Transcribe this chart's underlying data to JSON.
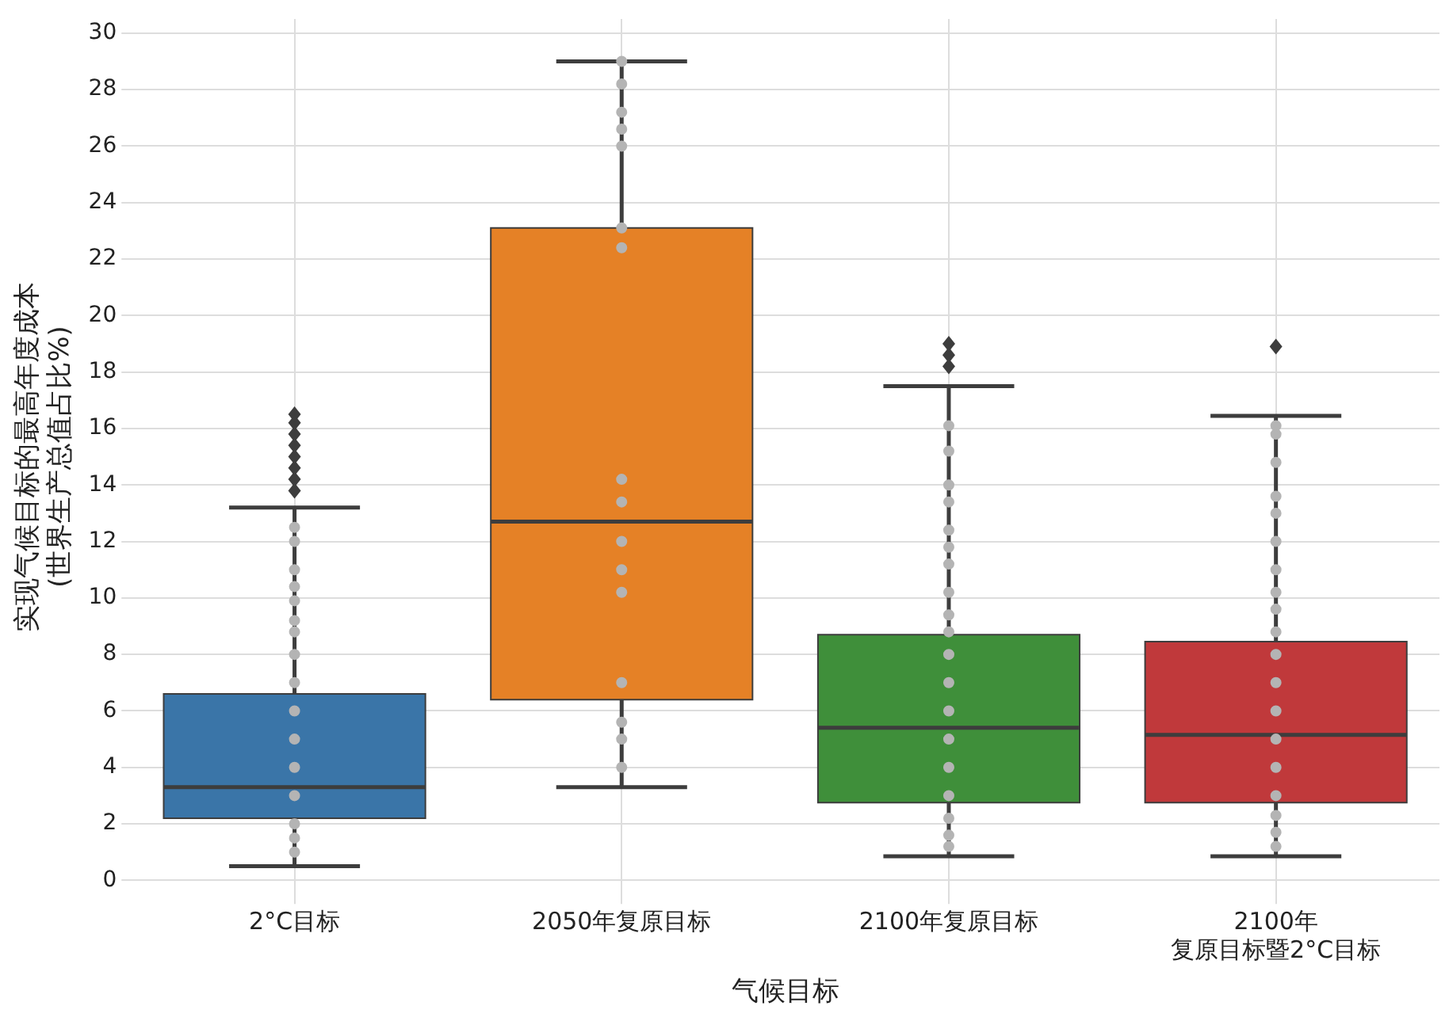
{
  "chart_data": {
    "type": "box",
    "xlabel": "气候目标",
    "ylabel": "实现气候目标的最高年度成本\n(世界生产总值占比%)",
    "categories": [
      "2°C目标",
      "2050年复原目标",
      "2100年复原目标",
      "2100年复原目标暨2°C目标"
    ],
    "colors": [
      "#3a75a8",
      "#e58126",
      "#3f8f3a",
      "#c0393b"
    ],
    "boxes": [
      {
        "low": 0.5,
        "q1": 2.2,
        "median": 3.3,
        "q3": 6.6,
        "high": 13.2,
        "outliers": [
          13.8,
          14.2,
          14.6,
          15,
          15.4,
          15.8,
          16.2,
          16.5
        ]
      },
      {
        "low": 3.3,
        "q1": 6.4,
        "median": 12.7,
        "q3": 23.1,
        "high": 29
      },
      {
        "low": 0.85,
        "q1": 2.75,
        "median": 5.4,
        "q3": 8.7,
        "high": 17.5,
        "outliers": [
          18.2,
          18.6,
          19
        ]
      },
      {
        "low": 0.85,
        "q1": 2.75,
        "median": 5.15,
        "q3": 8.45,
        "high": 16.45,
        "outliers": [
          18.9
        ]
      }
    ],
    "series": [
      {
        "type": "scatter",
        "color": "#b4b4b4",
        "marker": "circle",
        "x": [
          "2°C目标",
          "2°C目标",
          "2°C目标",
          "2°C目标",
          "2°C目标",
          "2°C目标",
          "2°C目标",
          "2°C目标",
          "2°C目标",
          "2°C目标",
          "2°C目标",
          "2°C目标",
          "2°C目标",
          "2°C目标",
          "2°C目标",
          "2°C目标",
          "2050年复原目标",
          "2050年复原目标",
          "2050年复原目标",
          "2050年复原目标",
          "2050年复原目标",
          "2050年复原目标",
          "2050年复原目标",
          "2050年复原目标",
          "2050年复原目标",
          "2050年复原目标",
          "2050年复原目标",
          "2050年复原目标",
          "2050年复原目标",
          "2050年复原目标",
          "2050年复原目标",
          "2050年复原目标",
          "2100年复原目标",
          "2100年复原目标",
          "2100年复原目标",
          "2100年复原目标",
          "2100年复原目标",
          "2100年复原目标",
          "2100年复原目标",
          "2100年复原目标",
          "2100年复原目标",
          "2100年复原目标",
          "2100年复原目标",
          "2100年复原目标",
          "2100年复原目标",
          "2100年复原目标",
          "2100年复原目标",
          "2100年复原目标",
          "2100年复原目标",
          "2100年复原目标",
          "2100年复原目标",
          "2100年复原目标暨2°C目标",
          "2100年复原目标暨2°C目标",
          "2100年复原目标暨2°C目标",
          "2100年复原目标暨2°C目标",
          "2100年复原目标暨2°C目标",
          "2100年复原目标暨2°C目标",
          "2100年复原目标暨2°C目标",
          "2100年复原目标暨2°C目标",
          "2100年复原目标暨2°C目标",
          "2100年复原目标暨2°C目标",
          "2100年复原目标暨2°C目标",
          "2100年复原目标暨2°C目标",
          "2100年复原目标暨2°C目标",
          "2100年复原目标暨2°C目标",
          "2100年复原目标暨2°C目标",
          "2100年复原目标暨2°C目标",
          "2100年复原目标暨2°C目标",
          "2100年复原目标暨2°C目标",
          "2100年复原目标暨2°C目标"
        ],
        "values": [
          1,
          1.5,
          2,
          3,
          4,
          5,
          6,
          7,
          8,
          8.8,
          9.2,
          9.9,
          10.4,
          11,
          12,
          12.5,
          4,
          5,
          5.6,
          7,
          10.2,
          11,
          12,
          13.4,
          14.2,
          22.4,
          23.1,
          26,
          26.6,
          27.2,
          28.2,
          29,
          1.2,
          1.6,
          2.2,
          3,
          4,
          5,
          6,
          7,
          8,
          8.8,
          9.4,
          10.2,
          11.2,
          11.8,
          12.4,
          13.4,
          14,
          15.2,
          16.1,
          1.2,
          1.7,
          2.3,
          3,
          4,
          5,
          6,
          7,
          8,
          8.8,
          9.6,
          10.2,
          11,
          12,
          13,
          13.6,
          14.8,
          15.8,
          16.1
        ]
      }
    ],
    "ylim": [
      -0.5,
      30.5
    ],
    "yticks": [
      0,
      2,
      4,
      6,
      8,
      10,
      12,
      14,
      16,
      18,
      20,
      22,
      24,
      26,
      28,
      30
    ],
    "grid": true,
    "legend": false
  }
}
